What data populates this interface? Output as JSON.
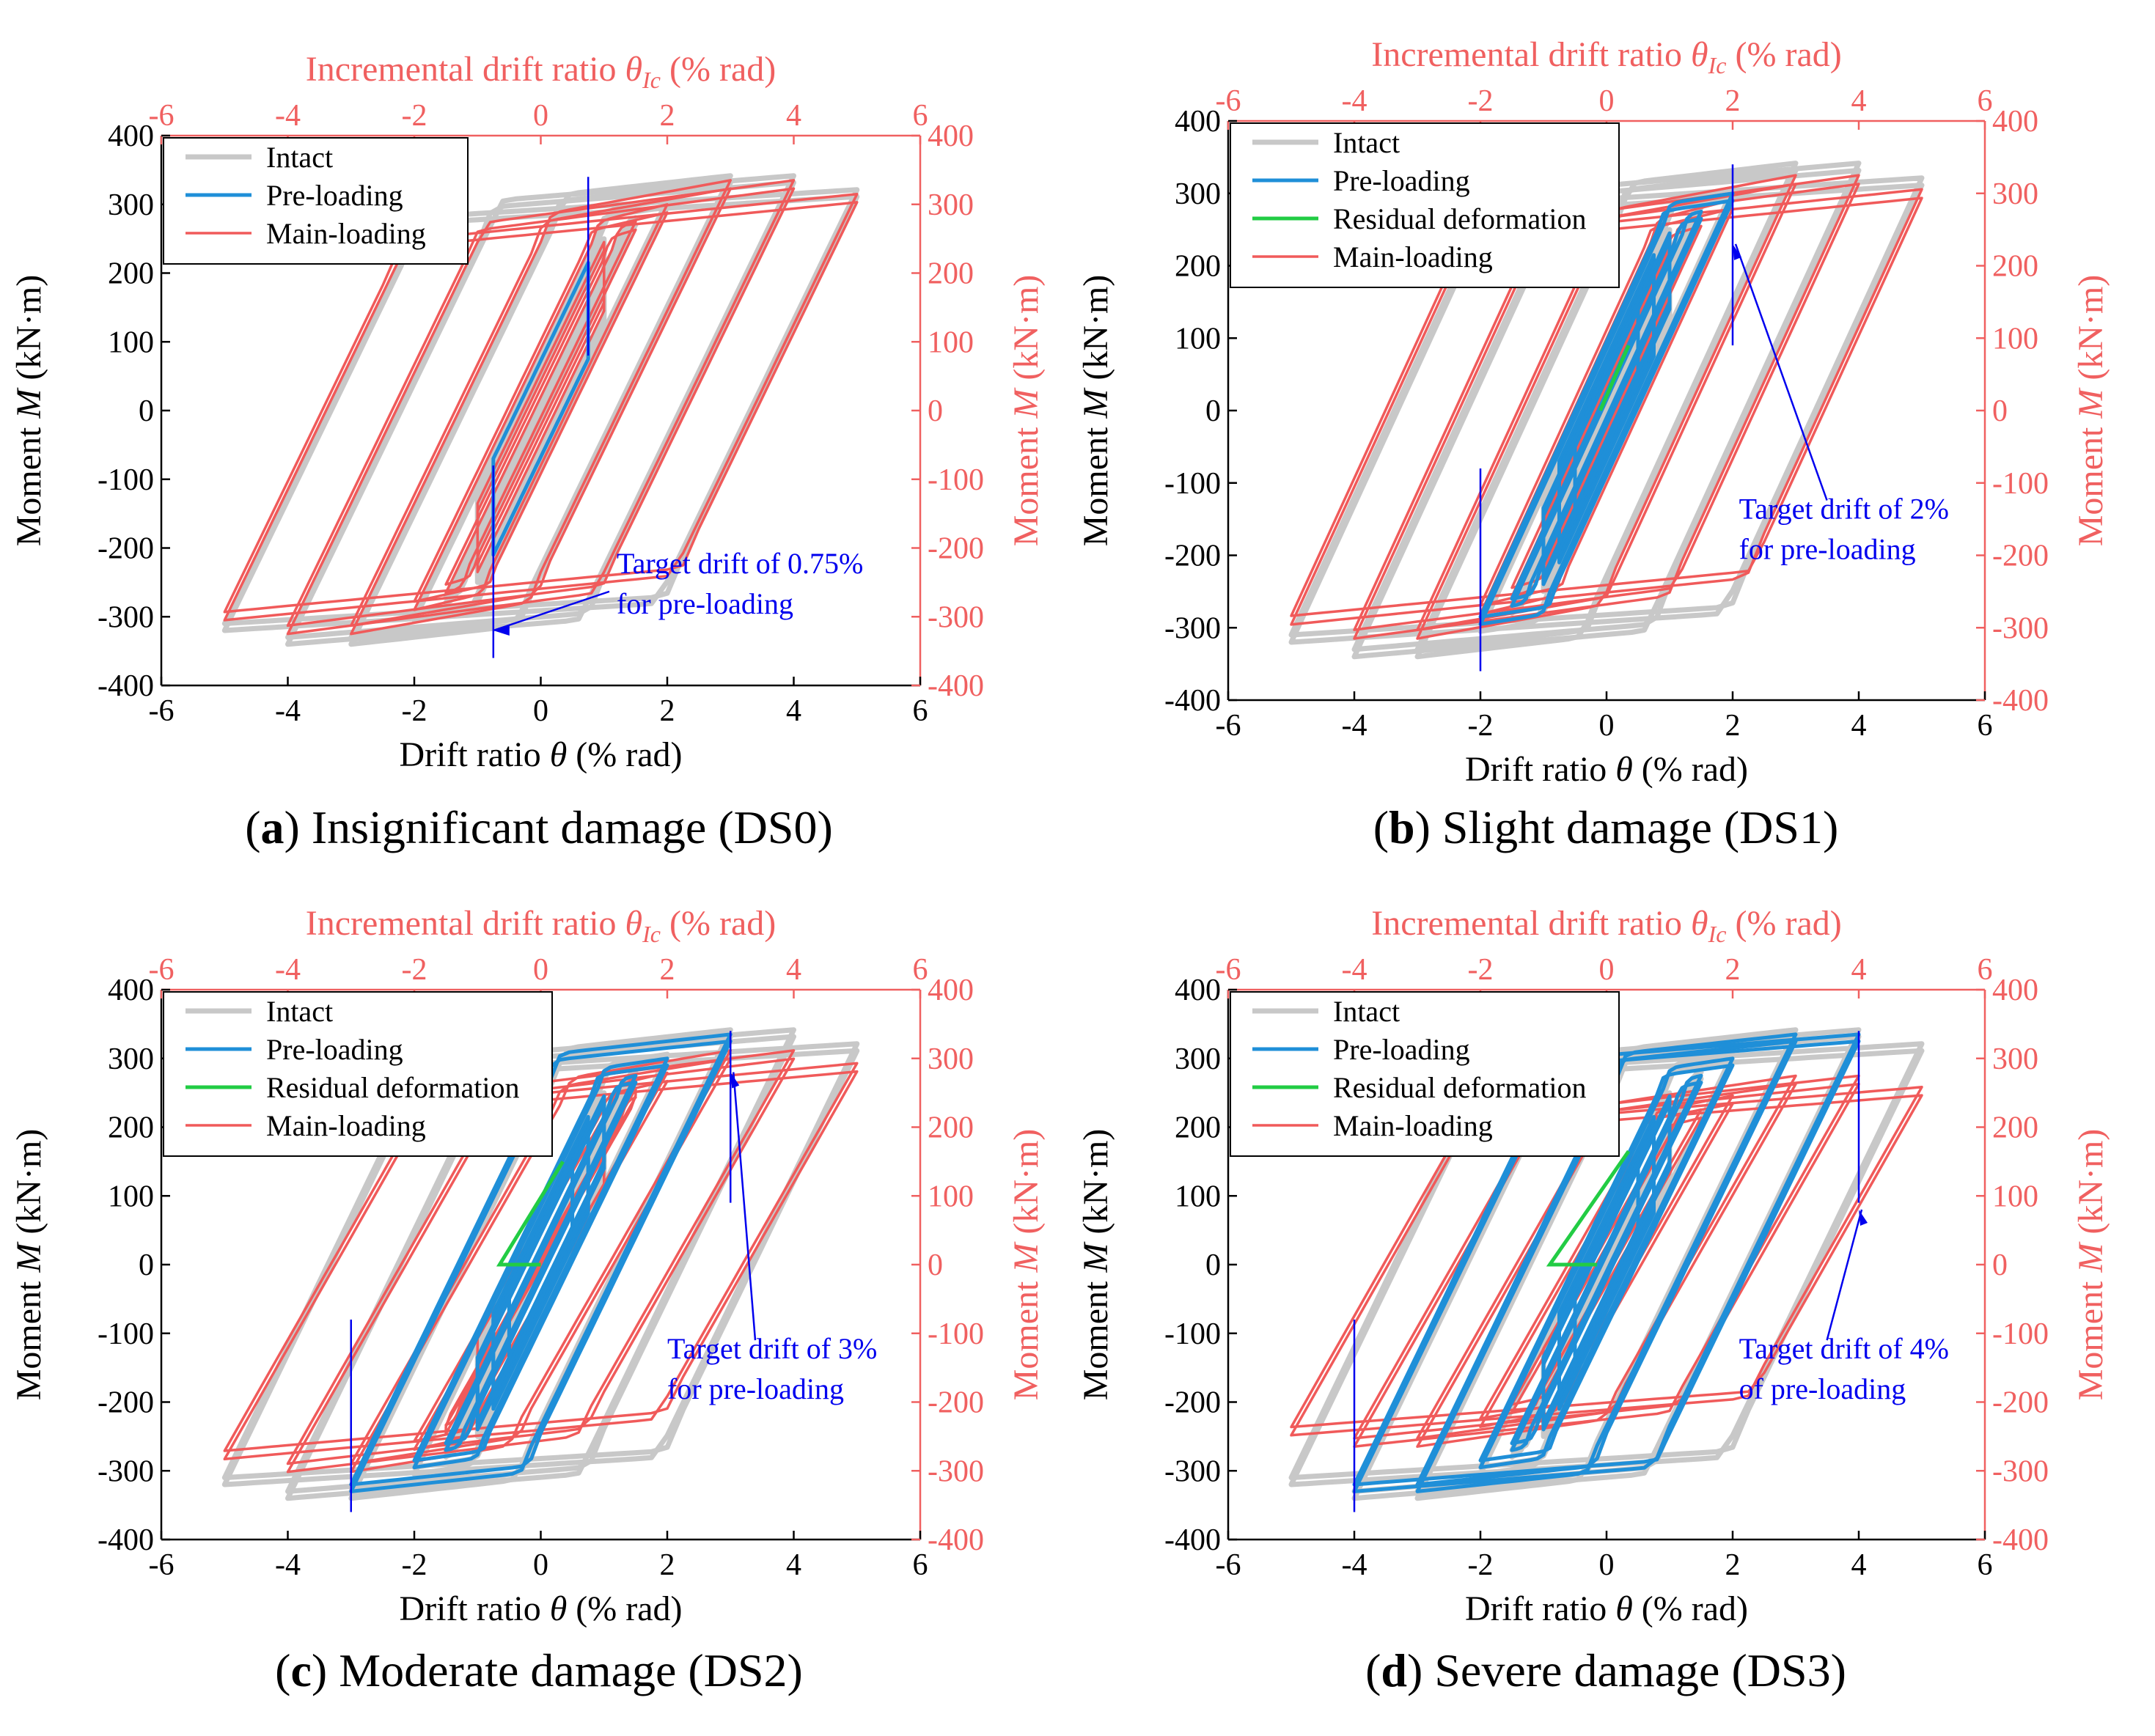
{
  "colors": {
    "intact": "#c8c8c8",
    "preloading": "#1f8fd8",
    "residual": "#22cc44",
    "mainloading": "#f05a5a",
    "annotation": "#0000ee",
    "topAxis": "#f06060",
    "leftAxis": "#000000"
  },
  "shared": {
    "xlabel_prefix": "Drift ratio ",
    "xlabel_sym": "θ",
    "xlabel_suffix": " (% rad)",
    "top_label_prefix": "Incremental drift ratio ",
    "top_label_sym": "θ",
    "top_label_sub": "Ic",
    "top_label_suffix": " (% rad)",
    "ylabel_prefix": "Moment ",
    "ylabel_sym": "M",
    "ylabel_suffix": " (kN·m)",
    "x_ticks": [
      "-6",
      "-4",
      "-2",
      "0",
      "2",
      "4",
      "6"
    ],
    "y_ticks": [
      "-400",
      "-300",
      "-200",
      "-100",
      "0",
      "100",
      "200",
      "300",
      "400"
    ]
  },
  "chart_data": [
    {
      "type": "line",
      "panel": "a",
      "caption_letter": "a",
      "caption_text": " Insignificant damage (DS0)",
      "xlim": [
        -6,
        6
      ],
      "ylim": [
        -400,
        400
      ],
      "legend": [
        "Intact",
        "Pre-loading",
        "Main-loading"
      ],
      "annotation": [
        "Target drift of 0.75%",
        "for pre-loading"
      ],
      "target_drift": 0.75,
      "annot_text_at": [
        1.2,
        -290
      ],
      "annot_arrow_to": [
        -0.75,
        -320
      ],
      "preload_amplitudes": [
        0.75
      ],
      "mainload_amplitudes": [
        1.0,
        1.5,
        2.0,
        3.0,
        4.0,
        5.0
      ],
      "residual": []
    },
    {
      "type": "line",
      "panel": "b",
      "caption_letter": "b",
      "caption_text": " Slight damage (DS1)",
      "xlim": [
        -6,
        6
      ],
      "ylim": [
        -400,
        400
      ],
      "legend": [
        "Intact",
        "Pre-loading",
        "Residual deformation",
        "Main-loading"
      ],
      "annotation": [
        "Target drift of 2%",
        "for pre-loading"
      ],
      "target_drift": 2.0,
      "annot_text_at": [
        2.1,
        -200
      ],
      "annot_arrow_to": [
        2.0,
        230
      ],
      "preload_amplitudes": [
        0.5,
        0.75,
        1.0,
        1.5,
        2.0
      ],
      "mainload_amplitudes": [
        1.0,
        1.5,
        2.0,
        3.0,
        4.0,
        5.0
      ],
      "residual": [
        [
          0.35,
          90
        ],
        [
          -0.1,
          0
        ]
      ]
    },
    {
      "type": "line",
      "panel": "c",
      "caption_letter": "c",
      "caption_text": " Moderate damage (DS2)",
      "xlim": [
        -6,
        6
      ],
      "ylim": [
        -400,
        400
      ],
      "legend": [
        "Intact",
        "Pre-loading",
        "Residual deformation",
        "Main-loading"
      ],
      "annotation": [
        "Target drift of 3%",
        "for pre-loading"
      ],
      "target_drift": 3.0,
      "annot_text_at": [
        2.0,
        -190
      ],
      "annot_arrow_to": [
        3.0,
        280
      ],
      "preload_amplitudes": [
        0.5,
        0.75,
        1.0,
        1.5,
        2.0,
        3.0
      ],
      "mainload_amplitudes": [
        1.0,
        1.5,
        2.0,
        3.0,
        4.0,
        5.0
      ],
      "residual": [
        [
          0.35,
          150
        ],
        [
          -0.65,
          0
        ],
        [
          0.0,
          0
        ]
      ]
    },
    {
      "type": "line",
      "panel": "d",
      "caption_letter": "d",
      "caption_text": " Severe damage (DS3)",
      "xlim": [
        -6,
        6
      ],
      "ylim": [
        -400,
        400
      ],
      "legend": [
        "Intact",
        "Pre-loading",
        "Residual deformation",
        "Main-loading"
      ],
      "annotation": [
        "Target drift of 4%",
        "of pre-loading"
      ],
      "target_drift": 4.0,
      "annot_text_at": [
        2.1,
        -190
      ],
      "annot_arrow_to": [
        4.0,
        80
      ],
      "preload_amplitudes": [
        0.5,
        0.75,
        1.0,
        1.5,
        2.0,
        3.0,
        4.0
      ],
      "mainload_amplitudes": [
        1.0,
        1.5,
        2.0,
        3.0,
        4.0,
        5.0
      ],
      "residual": [
        [
          0.35,
          165
        ],
        [
          -0.9,
          0
        ],
        [
          -0.15,
          0
        ]
      ]
    }
  ]
}
